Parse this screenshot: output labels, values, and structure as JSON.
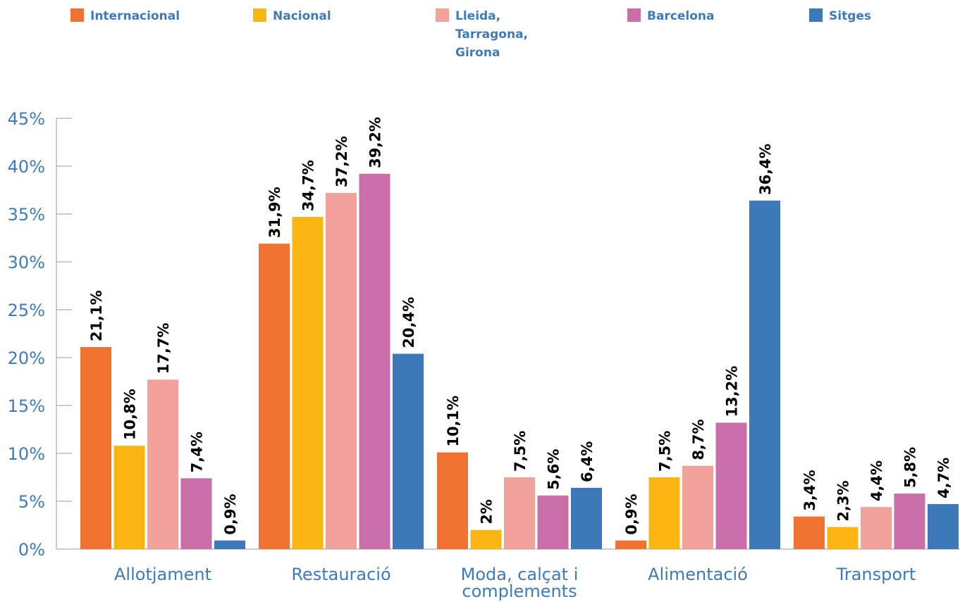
{
  "chart_data": {
    "type": "bar",
    "categories": [
      "Allotjament",
      "Restauració",
      "Moda, calçat i\ncomplements",
      "Alimentació",
      "Transport"
    ],
    "series": [
      {
        "name": "Internacional",
        "color": "#f07232",
        "values": [
          21.1,
          31.9,
          10.1,
          0.9,
          3.4
        ],
        "labels": [
          "21,1%",
          "31,9%",
          "10,1%",
          "0,9%",
          "3,4%"
        ]
      },
      {
        "name": "Nacional",
        "color": "#fbb614",
        "values": [
          10.8,
          34.7,
          2.0,
          7.5,
          2.3
        ],
        "labels": [
          "10,8%",
          "34,7%",
          "2%",
          "7,5%",
          "2,3%"
        ]
      },
      {
        "name": "Lleida,\nTarragona,\nGirona",
        "color": "#f1a29b",
        "values": [
          17.7,
          37.2,
          7.5,
          8.7,
          4.4
        ],
        "labels": [
          "17,7%",
          "37,2%",
          "7,5%",
          "8,7%",
          "4,4%"
        ]
      },
      {
        "name": "Barcelona",
        "color": "#c96ea9",
        "values": [
          7.4,
          39.2,
          5.6,
          13.2,
          5.8
        ],
        "labels": [
          "7,4%",
          "39,2%",
          "5,6%",
          "13,2%",
          "5,8%"
        ]
      },
      {
        "name": "Sitges",
        "color": "#3d78b9",
        "values": [
          0.9,
          20.4,
          6.4,
          36.4,
          4.7
        ],
        "labels": [
          "0,9%",
          "20,4%",
          "6,4%",
          "36,4%",
          "4,7%"
        ]
      }
    ],
    "y_ticks": [
      "0%",
      "5%",
      "10%",
      "15%",
      "20%",
      "25%",
      "30%",
      "35%",
      "40%",
      "45%"
    ],
    "ylim": [
      0,
      45
    ],
    "title": "",
    "xlabel": "",
    "ylabel": "",
    "grid": false,
    "legend_position": "top",
    "axis_color": "#3f7ab9",
    "label_color": "#000000"
  }
}
